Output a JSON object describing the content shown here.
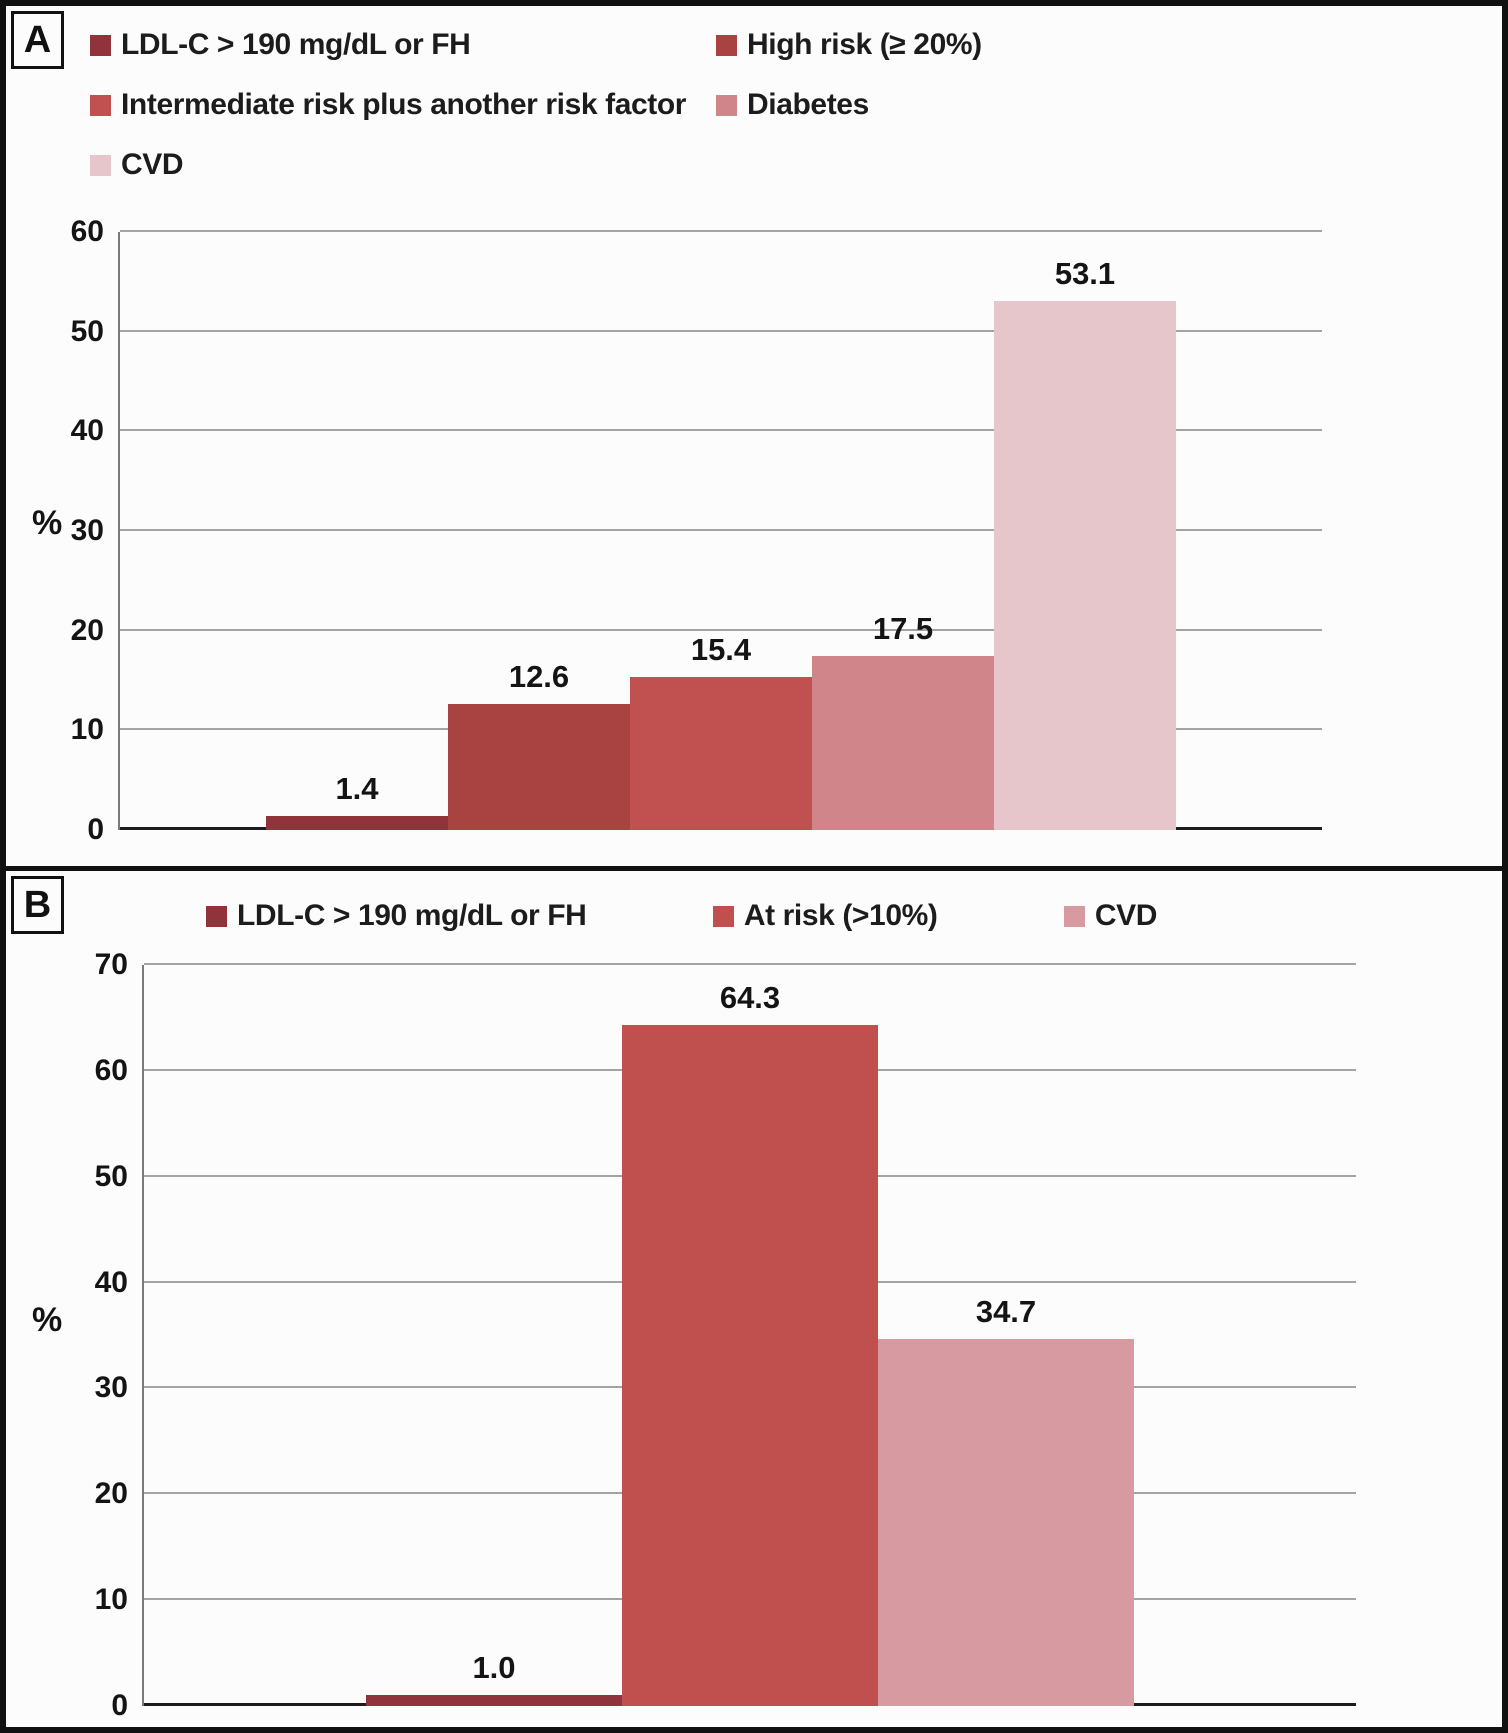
{
  "panels": [
    {
      "letter": "A"
    },
    {
      "letter": "B"
    }
  ],
  "chart_data": [
    {
      "panel": "A",
      "type": "bar",
      "title": "",
      "categories": [
        "LDL-C > 190 mg/dL or FH",
        "High risk (≥ 20%)",
        "Intermediate risk plus another risk factor",
        "Diabetes",
        "CVD"
      ],
      "values": [
        1.4,
        12.6,
        15.4,
        17.5,
        53.1
      ],
      "value_labels": [
        "1.4",
        "12.6",
        "15.4",
        "17.5",
        "53.1"
      ],
      "colors": [
        "#90333b",
        "#a84341",
        "#c05150",
        "#cf8589",
        "#e7c6cb"
      ],
      "xlabel": "",
      "ylabel": "%",
      "ylim": [
        0,
        60
      ],
      "ytick_step": 10,
      "grid": true,
      "legend_position": "top"
    },
    {
      "panel": "B",
      "type": "bar",
      "title": "",
      "categories": [
        "LDL-C > 190 mg/dL or FH",
        "At risk (>10%)",
        "CVD"
      ],
      "values": [
        1.0,
        64.3,
        34.7
      ],
      "value_labels": [
        "1.0",
        "64.3",
        "34.7"
      ],
      "colors": [
        "#90333b",
        "#c0504d",
        "#d79aa0"
      ],
      "xlabel": "",
      "ylabel": "%",
      "ylim": [
        0,
        70
      ],
      "ytick_step": 10,
      "grid": true,
      "legend_position": "top"
    }
  ]
}
